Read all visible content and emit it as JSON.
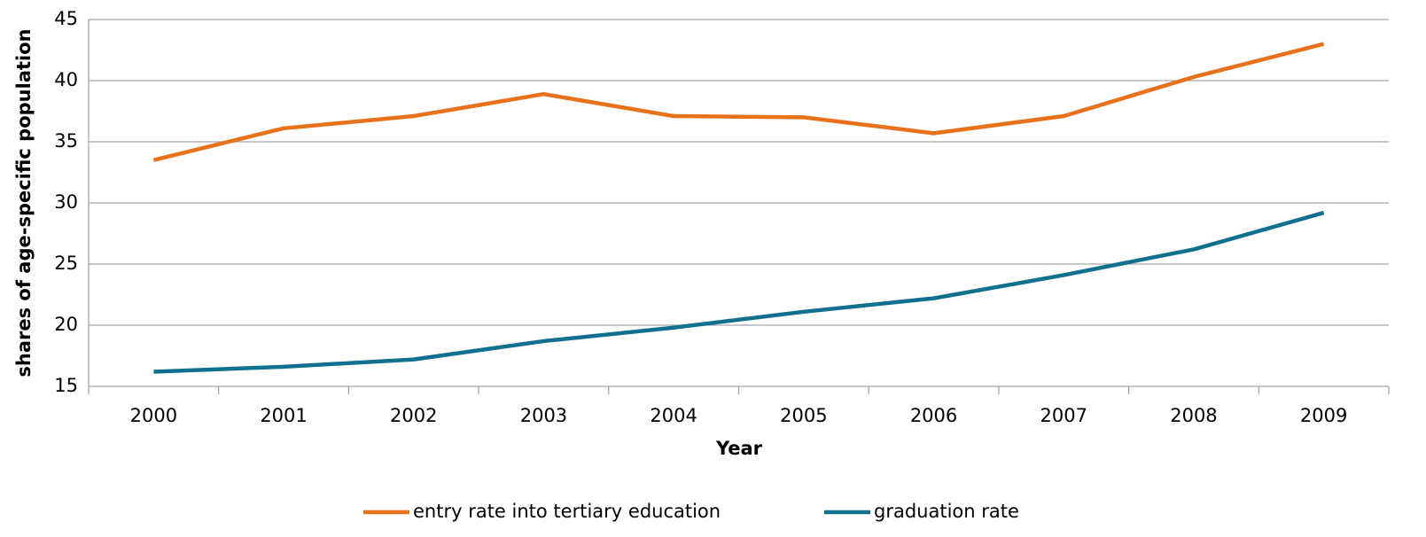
{
  "chart_data": {
    "type": "line",
    "x_label": "Year",
    "y_label": "shares of age-specific population",
    "categories": [
      "2000",
      "2001",
      "2002",
      "2003",
      "2004",
      "2005",
      "2006",
      "2007",
      "2008",
      "2009"
    ],
    "series": [
      {
        "name": "entry rate into tertiary education",
        "color": "#e8711c",
        "values": [
          33.5,
          36.1,
          37.1,
          38.9,
          37.1,
          37.0,
          35.7,
          37.1,
          40.3,
          43.0
        ]
      },
      {
        "name": "graduation rate",
        "color": "#12708f",
        "values": [
          16.2,
          16.6,
          17.2,
          18.7,
          19.8,
          21.1,
          22.2,
          24.1,
          26.2,
          29.2
        ]
      }
    ],
    "ylim": [
      15,
      45
    ],
    "yticks": [
      15,
      20,
      25,
      30,
      35,
      40,
      45
    ],
    "grid": true,
    "legend": "bottom"
  }
}
